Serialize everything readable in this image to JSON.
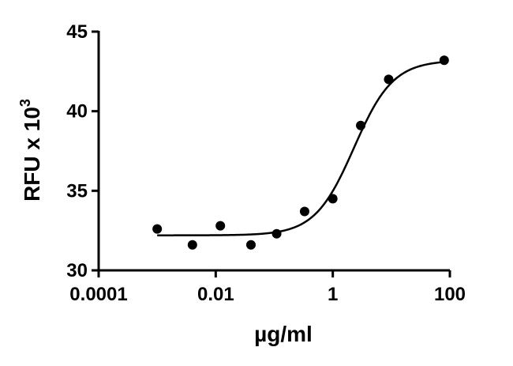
{
  "chart_data": {
    "type": "scatter",
    "title": "",
    "xlabel": "µg/ml",
    "ylabel_main": "RFU x 10",
    "ylabel_sup": "3",
    "xscale": "log",
    "xlim": [
      0.0001,
      100
    ],
    "ylim": [
      30,
      45
    ],
    "xticks": [
      0.0001,
      0.01,
      1,
      100
    ],
    "xtick_labels": [
      "0.0001",
      "0.01",
      "1",
      "100"
    ],
    "yticks": [
      30,
      35,
      40,
      45
    ],
    "ytick_labels": [
      "30",
      "35",
      "40",
      "45"
    ],
    "grid": false,
    "legend": "none",
    "points": [
      {
        "x": 0.001,
        "y": 32.6
      },
      {
        "x": 0.004,
        "y": 31.6
      },
      {
        "x": 0.012,
        "y": 32.8
      },
      {
        "x": 0.04,
        "y": 31.6
      },
      {
        "x": 0.11,
        "y": 32.3
      },
      {
        "x": 0.33,
        "y": 33.7
      },
      {
        "x": 1.0,
        "y": 34.5
      },
      {
        "x": 3.0,
        "y": 39.1
      },
      {
        "x": 9.0,
        "y": 42.0
      },
      {
        "x": 80.0,
        "y": 43.2
      }
    ],
    "fit": {
      "model": "4PL",
      "bottom": 32.2,
      "top": 43.2,
      "ec50": 2.3,
      "hill": 1.3
    },
    "colors": {
      "points": "#000000",
      "line": "#000000",
      "axis": "#000000"
    }
  }
}
